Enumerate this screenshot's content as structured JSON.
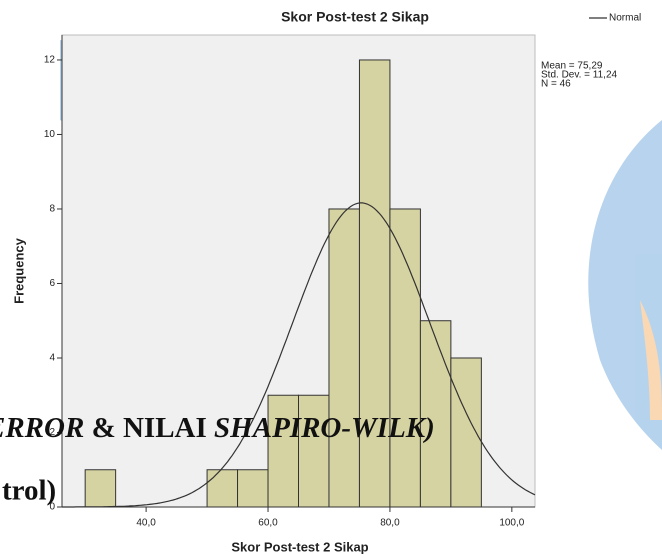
{
  "chart_data": {
    "type": "histogram",
    "title": "Skor Post-test 2 Sikap",
    "xlabel": "Skor Post-test 2 Sikap",
    "ylabel": "Frequency",
    "bins": [
      30,
      35,
      40,
      45,
      50,
      55,
      60,
      65,
      70,
      75,
      80,
      85,
      90,
      95
    ],
    "values": [
      1,
      0,
      0,
      0,
      1,
      1,
      3,
      3,
      8,
      12,
      8,
      5,
      4
    ],
    "color": "#d6d3a2",
    "xlim": [
      26.2,
      103.8
    ],
    "xticks": [
      {
        "value": 40,
        "label": "40,0"
      },
      {
        "value": 60,
        "label": "60,0"
      },
      {
        "value": 80,
        "label": "80,0"
      },
      {
        "value": 100,
        "label": "100,0"
      }
    ],
    "ylim": [
      0,
      12.67
    ],
    "yticks": [
      0,
      2,
      4,
      6,
      8,
      10,
      12
    ],
    "legend": {
      "name": "Normal",
      "position": "top-right"
    },
    "annotations": [
      {
        "label": "Mean = 75,29",
        "value": 75.29
      },
      {
        "label": "Std. Dev. = 11,24",
        "value": 11.24
      },
      {
        "label": "N = 46",
        "value": 46
      }
    ]
  },
  "background_text": [
    "ERROR",
    " & NILAI ",
    "SHAPIRO-WILK)",
    "trol)"
  ]
}
